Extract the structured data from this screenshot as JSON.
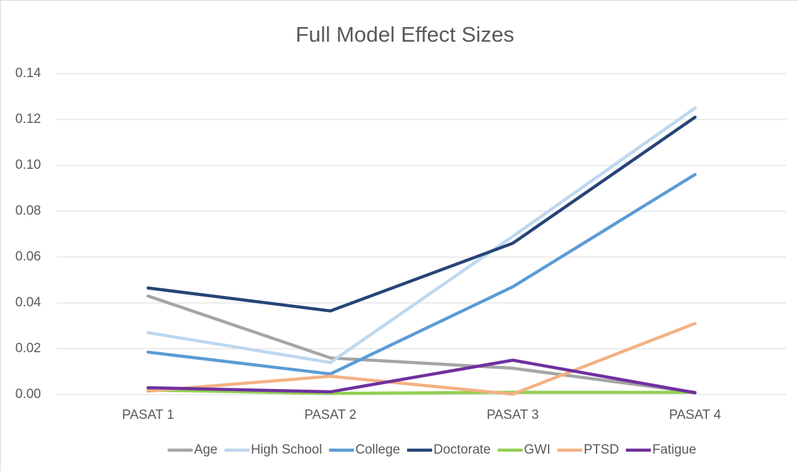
{
  "chart_data": {
    "type": "line",
    "title": "Full Model Effect Sizes",
    "categories": [
      "PASAT 1",
      "PASAT 2",
      "PASAT 3",
      "PASAT 4"
    ],
    "series": [
      {
        "name": "Age",
        "color": "#a5a5a5",
        "values": [
          0.043,
          0.016,
          0.0115,
          0.001
        ]
      },
      {
        "name": "High School",
        "color": "#bdd7ee",
        "values": [
          0.027,
          0.014,
          0.069,
          0.125
        ]
      },
      {
        "name": "College",
        "color": "#5b9bd5",
        "values": [
          0.0185,
          0.009,
          0.047,
          0.096
        ]
      },
      {
        "name": "Doctorate",
        "color": "#264478",
        "values": [
          0.0465,
          0.0365,
          0.066,
          0.121
        ]
      },
      {
        "name": "GWI",
        "color": "#92d050",
        "values": [
          0.002,
          0.0005,
          0.001,
          0.001
        ]
      },
      {
        "name": "PTSD",
        "color": "#f4b183",
        "values": [
          0.0015,
          0.008,
          0.0002,
          0.031
        ]
      },
      {
        "name": "Fatigue",
        "color": "#7030a0",
        "values": [
          0.003,
          0.0012,
          0.015,
          0.0008
        ]
      }
    ],
    "ylim": [
      0,
      0.14
    ],
    "yticks": [
      {
        "value": 0,
        "label": "0.00"
      },
      0.02,
      0.04,
      0.06,
      0.08,
      {
        "value": 0.1,
        "label": "0.10"
      },
      0.12,
      0.14
    ],
    "grid": true,
    "legend": "bottom"
  }
}
